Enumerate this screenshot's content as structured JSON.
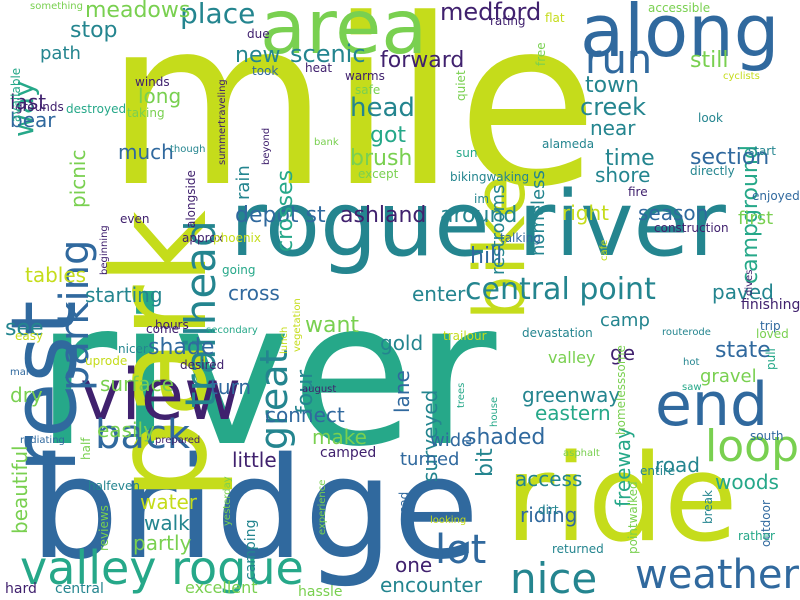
{
  "word_cloud": {
    "background": "#ffffff",
    "palette": [
      "#30699e",
      "#26a889",
      "#c5dc1b",
      "#79d050",
      "#40216e",
      "#24858f"
    ],
    "words": [
      {
        "text": "mile",
        "color": "#c5dc1b"
      },
      {
        "text": "river",
        "color": "#26a889"
      },
      {
        "text": "bridge",
        "color": "#30699e"
      },
      {
        "text": "park",
        "color": "#c5dc1b"
      },
      {
        "text": "rogue river",
        "color": "#24858f"
      },
      {
        "text": "rest",
        "color": "#30699e"
      },
      {
        "text": "ride",
        "color": "#c5dc1b"
      },
      {
        "text": "area",
        "color": "#79d050"
      },
      {
        "text": "along",
        "color": "#30699e"
      },
      {
        "text": "view",
        "color": "#40216e"
      },
      {
        "text": "end",
        "color": "#30699e"
      },
      {
        "text": "bike",
        "color": "#c5dc1b"
      },
      {
        "text": "valley rogue",
        "color": "#26a889"
      },
      {
        "text": "weather",
        "color": "#30699e"
      },
      {
        "text": "nice",
        "color": "#24858f"
      },
      {
        "text": "loop",
        "color": "#79d050"
      },
      {
        "text": "parking",
        "color": "#30699e"
      },
      {
        "text": "trailhead",
        "color": "#24858f"
      },
      {
        "text": "back",
        "color": "#30699e"
      },
      {
        "text": "great",
        "color": "#24858f"
      },
      {
        "text": "lot",
        "color": "#30699e"
      },
      {
        "text": "run",
        "color": "#30699e"
      },
      {
        "text": "way",
        "color": "#26a889"
      },
      {
        "text": "campground",
        "color": "#26a889"
      },
      {
        "text": "central point",
        "color": "#24858f"
      },
      {
        "text": "place",
        "color": "#24858f"
      },
      {
        "text": "meadows",
        "color": "#79d050"
      },
      {
        "text": "stop",
        "color": "#24858f"
      },
      {
        "text": "path",
        "color": "#24858f"
      },
      {
        "text": "medford",
        "color": "#40216e"
      },
      {
        "text": "forward",
        "color": "#40216e"
      },
      {
        "text": "scenic",
        "color": "#24858f"
      },
      {
        "text": "new",
        "color": "#24858f"
      },
      {
        "text": "head",
        "color": "#24858f"
      },
      {
        "text": "got",
        "color": "#26a889"
      },
      {
        "text": "brush",
        "color": "#79d050"
      },
      {
        "text": "restrooms",
        "color": "#24858f"
      },
      {
        "text": "homeless",
        "color": "#24858f"
      },
      {
        "text": "town",
        "color": "#24858f"
      },
      {
        "text": "creek",
        "color": "#24858f"
      },
      {
        "text": "near",
        "color": "#24858f"
      },
      {
        "text": "time",
        "color": "#24858f"
      },
      {
        "text": "section",
        "color": "#30699e"
      },
      {
        "text": "shore",
        "color": "#24858f"
      },
      {
        "text": "still",
        "color": "#79d050"
      },
      {
        "text": "last",
        "color": "#40216e"
      },
      {
        "text": "bear",
        "color": "#30699e"
      },
      {
        "text": "long",
        "color": "#79d050"
      },
      {
        "text": "much",
        "color": "#30699e"
      },
      {
        "text": "picnic",
        "color": "#79d050"
      },
      {
        "text": "depot st",
        "color": "#30699e"
      },
      {
        "text": "ashland",
        "color": "#40216e"
      },
      {
        "text": "around",
        "color": "#24858f"
      },
      {
        "text": "right",
        "color": "#c5dc1b"
      },
      {
        "text": "season",
        "color": "#30699e"
      },
      {
        "text": "first",
        "color": "#79d050"
      },
      {
        "text": "crosses",
        "color": "#26a889"
      },
      {
        "text": "rain",
        "color": "#24858f"
      },
      {
        "text": "hill",
        "color": "#30699e"
      },
      {
        "text": "tables",
        "color": "#c5dc1b"
      },
      {
        "text": "starting",
        "color": "#24858f"
      },
      {
        "text": "cross",
        "color": "#30699e"
      },
      {
        "text": "enter",
        "color": "#24858f"
      },
      {
        "text": "paved",
        "color": "#24858f"
      },
      {
        "text": "camp",
        "color": "#24858f"
      },
      {
        "text": "state",
        "color": "#30699e"
      },
      {
        "text": "see",
        "color": "#24858f"
      },
      {
        "text": "want",
        "color": "#79d050"
      },
      {
        "text": "gold",
        "color": "#24858f"
      },
      {
        "text": "lane",
        "color": "#30699e"
      },
      {
        "text": "shade",
        "color": "#30699e"
      },
      {
        "text": "four",
        "color": "#24858f"
      },
      {
        "text": "surveyed",
        "color": "#24858f"
      },
      {
        "text": "greenway",
        "color": "#24858f"
      },
      {
        "text": "gravel",
        "color": "#79d050"
      },
      {
        "text": "eastern",
        "color": "#26a889"
      },
      {
        "text": "ge",
        "color": "#40216e"
      },
      {
        "text": "dry",
        "color": "#79d050"
      },
      {
        "text": "surface",
        "color": "#79d050"
      },
      {
        "text": "turn",
        "color": "#30699e"
      },
      {
        "text": "connect",
        "color": "#30699e"
      },
      {
        "text": "make",
        "color": "#79d050"
      },
      {
        "text": "easily",
        "color": "#79d050"
      },
      {
        "text": "beautiful",
        "color": "#79d050"
      },
      {
        "text": "little",
        "color": "#40216e"
      },
      {
        "text": "shaded",
        "color": "#30699e"
      },
      {
        "text": "wide",
        "color": "#30699e"
      },
      {
        "text": "turned",
        "color": "#30699e"
      },
      {
        "text": "bit",
        "color": "#24858f"
      },
      {
        "text": "freeway",
        "color": "#26a889"
      },
      {
        "text": "road",
        "color": "#24858f"
      },
      {
        "text": "access",
        "color": "#24858f"
      },
      {
        "text": "woods",
        "color": "#26a889"
      },
      {
        "text": "water",
        "color": "#c5dc1b"
      },
      {
        "text": "walk",
        "color": "#24858f"
      },
      {
        "text": "partly",
        "color": "#79d050"
      },
      {
        "text": "riding",
        "color": "#30699e"
      },
      {
        "text": "one",
        "color": "#40216e"
      },
      {
        "text": "encounter",
        "color": "#24858f"
      },
      {
        "text": "excellent",
        "color": "#79d050"
      },
      {
        "text": "hassle",
        "color": "#79d050"
      },
      {
        "text": "hard",
        "color": "#40216e"
      },
      {
        "text": "central",
        "color": "#24858f"
      },
      {
        "text": "valley",
        "color": "#79d050"
      },
      {
        "text": "camped",
        "color": "#40216e"
      },
      {
        "text": "camping",
        "color": "#24858f"
      },
      {
        "text": "half",
        "color": "#79d050"
      },
      {
        "text": "reviews",
        "color": "#79d050"
      },
      {
        "text": "south",
        "color": "#30699e"
      },
      {
        "text": "entire",
        "color": "#24858f"
      },
      {
        "text": "approx",
        "color": "#40216e"
      },
      {
        "text": "dirt",
        "color": "#24858f"
      },
      {
        "text": "returned",
        "color": "#24858f"
      },
      {
        "text": "outdoor",
        "color": "#30699e"
      },
      {
        "text": "rather",
        "color": "#26a889"
      },
      {
        "text": "break",
        "color": "#24858f"
      },
      {
        "text": "finishing",
        "color": "#40216e"
      },
      {
        "text": "trip",
        "color": "#30699e"
      },
      {
        "text": "pull",
        "color": "#26a889"
      },
      {
        "text": "loved",
        "color": "#79d050"
      },
      {
        "text": "hot",
        "color": "#24858f"
      },
      {
        "text": "saw",
        "color": "#26a889"
      },
      {
        "text": "routerode",
        "color": "#24858f"
      },
      {
        "text": "devastation",
        "color": "#24858f"
      },
      {
        "text": "trailour",
        "color": "#c5dc1b"
      },
      {
        "text": "homelesssome",
        "color": "#79d050"
      },
      {
        "text": "talking",
        "color": "#30699e"
      },
      {
        "text": "construction",
        "color": "#40216e"
      },
      {
        "text": "fire",
        "color": "#40216e"
      },
      {
        "text": "enjoyed",
        "color": "#30699e"
      },
      {
        "text": "directly",
        "color": "#24858f"
      },
      {
        "text": "start",
        "color": "#24858f"
      },
      {
        "text": "sun",
        "color": "#26a889"
      },
      {
        "text": "bikingwaking",
        "color": "#24858f"
      },
      {
        "text": "except",
        "color": "#79d050"
      },
      {
        "text": "im",
        "color": "#24858f"
      },
      {
        "text": "look",
        "color": "#24858f"
      },
      {
        "text": "alameda",
        "color": "#24858f"
      },
      {
        "text": "quiet",
        "color": "#79d050"
      },
      {
        "text": "free",
        "color": "#79d050"
      },
      {
        "text": "rating",
        "color": "#40216e"
      },
      {
        "text": "flat",
        "color": "#c5dc1b"
      },
      {
        "text": "accessible",
        "color": "#79d050"
      },
      {
        "text": "cyclists",
        "color": "#c5dc1b"
      },
      {
        "text": "due",
        "color": "#40216e"
      },
      {
        "text": "took",
        "color": "#30699e"
      },
      {
        "text": "heat",
        "color": "#40216e"
      },
      {
        "text": "warms",
        "color": "#40216e"
      },
      {
        "text": "safe",
        "color": "#79d050"
      },
      {
        "text": "winds",
        "color": "#40216e"
      },
      {
        "text": "destroyed",
        "color": "#26a889"
      },
      {
        "text": "taking",
        "color": "#79d050"
      },
      {
        "text": "grounds",
        "color": "#40216e"
      },
      {
        "text": "available",
        "color": "#26a889"
      },
      {
        "text": "something",
        "color": "#79d050"
      },
      {
        "text": "summertraveling",
        "color": "#40216e"
      },
      {
        "text": "beyond",
        "color": "#40216e"
      },
      {
        "text": "bank",
        "color": "#79d050"
      },
      {
        "text": "though",
        "color": "#24858f"
      },
      {
        "text": "alongside",
        "color": "#40216e"
      },
      {
        "text": "phoenix",
        "color": "#c5dc1b"
      },
      {
        "text": "going",
        "color": "#26a889"
      },
      {
        "text": "even",
        "color": "#40216e"
      },
      {
        "text": "beginning",
        "color": "#40216e"
      },
      {
        "text": "easy",
        "color": "#c5dc1b"
      },
      {
        "text": "come",
        "color": "#40216e"
      },
      {
        "text": "secondary",
        "color": "#26a889"
      },
      {
        "text": "hours",
        "color": "#40216e"
      },
      {
        "text": "lunch",
        "color": "#c5dc1b"
      },
      {
        "text": "vegetation",
        "color": "#c5dc1b"
      },
      {
        "text": "nicer",
        "color": "#24858f"
      },
      {
        "text": "desired",
        "color": "#40216e"
      },
      {
        "text": "uprode",
        "color": "#c5dc1b"
      },
      {
        "text": "mark",
        "color": "#30699e"
      },
      {
        "text": "august",
        "color": "#40216e"
      },
      {
        "text": "trees",
        "color": "#26a889"
      },
      {
        "text": "house",
        "color": "#26a889"
      },
      {
        "text": "asphalt",
        "color": "#79d050"
      },
      {
        "text": "cafe",
        "color": "#c5dc1b"
      },
      {
        "text": "dives",
        "color": "#40216e"
      },
      {
        "text": "radiating",
        "color": "#30699e"
      },
      {
        "text": "prepared",
        "color": "#40216e"
      },
      {
        "text": "halfeven",
        "color": "#24858f"
      },
      {
        "text": "yesterday",
        "color": "#79d050"
      },
      {
        "text": "experience",
        "color": "#79d050"
      },
      {
        "text": "sad",
        "color": "#30699e"
      },
      {
        "text": "looking",
        "color": "#c5dc1b"
      },
      {
        "text": "pointwalked",
        "color": "#79d050"
      }
    ]
  }
}
